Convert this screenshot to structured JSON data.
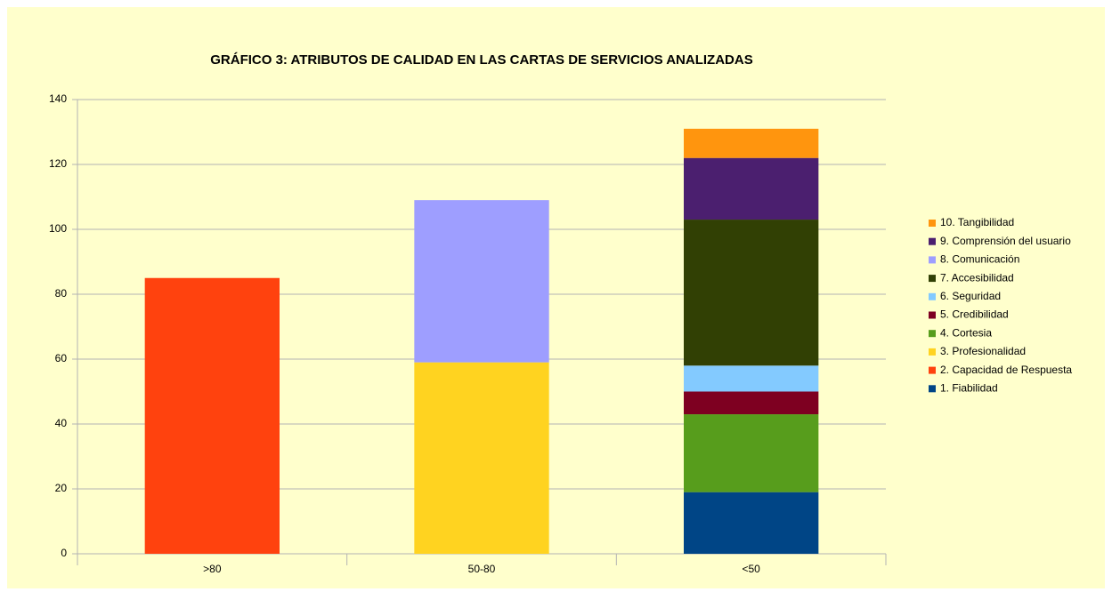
{
  "chart_data": {
    "type": "bar",
    "stacked": true,
    "title": "GRÁFICO 3: ATRIBUTOS DE CALIDAD EN LAS CARTAS DE SERVICIOS ANALIZADAS",
    "categories": [
      ">80",
      "50-80",
      "<50"
    ],
    "series": [
      {
        "name": "1. Fiabilidad",
        "color": "#004586",
        "values": [
          null,
          null,
          19
        ]
      },
      {
        "name": "2. Capacidad de Respuesta",
        "color": "#ff420e",
        "values": [
          85,
          null,
          null
        ]
      },
      {
        "name": "3. Profesionalidad",
        "color": "#ffd320",
        "values": [
          null,
          59,
          null
        ]
      },
      {
        "name": "4. Cortesia",
        "color": "#579d1c",
        "values": [
          null,
          null,
          24
        ]
      },
      {
        "name": "5. Credibilidad",
        "color": "#7e0021",
        "values": [
          null,
          null,
          7
        ]
      },
      {
        "name": "6. Seguridad",
        "color": "#83caff",
        "values": [
          null,
          null,
          8
        ]
      },
      {
        "name": "7. Accesibilidad",
        "color": "#314004",
        "values": [
          null,
          null,
          45
        ]
      },
      {
        "name": "8. Comunicación",
        "color": "#9e9eff",
        "values": [
          null,
          50,
          null
        ]
      },
      {
        "name": "9. Comprensión del usuario",
        "color": "#4b1f6f",
        "values": [
          null,
          null,
          19
        ]
      },
      {
        "name": "10. Tangibilidad",
        "color": "#ff950e",
        "values": [
          null,
          null,
          9
        ]
      }
    ],
    "ylim": [
      0,
      140
    ],
    "yticks": [
      0,
      20,
      40,
      60,
      80,
      100,
      120,
      140
    ],
    "grid": true,
    "legend": "right"
  }
}
